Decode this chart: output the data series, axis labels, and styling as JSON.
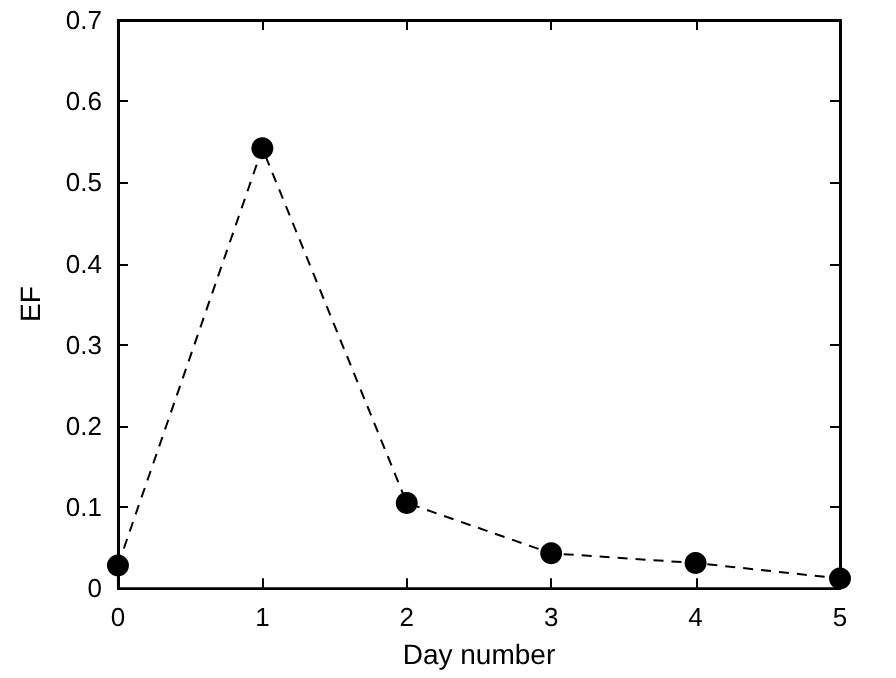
{
  "chart_data": {
    "type": "line",
    "xlabel": "Day number",
    "ylabel": "EF",
    "x": [
      0,
      1,
      2,
      3,
      4,
      5
    ],
    "series": [
      {
        "color": "#000000",
        "values": [
          0.028,
          0.542,
          0.105,
          0.043,
          0.031,
          0.012
        ]
      }
    ],
    "xlim": [
      0,
      5
    ],
    "xticks": [
      0,
      1,
      2,
      3,
      4,
      5
    ],
    "ylim": [
      0,
      0.7
    ],
    "yticks": [
      0,
      0.1,
      0.2,
      0.3,
      0.4,
      0.5,
      0.6,
      0.7
    ],
    "grid": false,
    "marker": "circle",
    "line_style": "dashed"
  }
}
